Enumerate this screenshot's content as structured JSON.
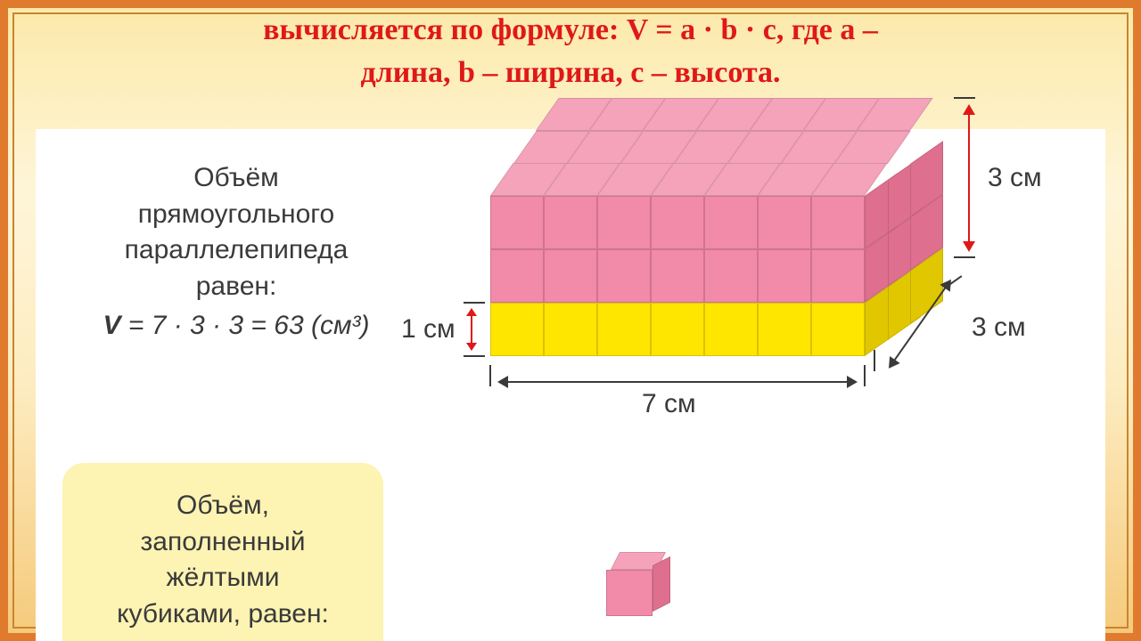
{
  "header": {
    "line1": "вычисляется по формуле: ",
    "formula": "V = a · b · c, где a –",
    "line2": "длина, b – ширина, c – высота."
  },
  "leftText": {
    "l1": "Объём",
    "l2": "прямоугольного",
    "l3": "параллелепипеда",
    "l4": "равен:",
    "formula": "V = 7 · 3 · 3 = 63 (см³)"
  },
  "noteBox": {
    "l1": "Объём,",
    "l2": "заполненный",
    "l3": "жёлтыми",
    "l4": "кубиками, равен:"
  },
  "cuboid": {
    "cols": 7,
    "depth": 3,
    "height_rows": 3,
    "yellow_row_index": 2,
    "colors": {
      "pink_front": "#f28aa9",
      "pink_top": "#f4a3bb",
      "pink_side": "#de6f8f",
      "yellow_front": "#ffe600",
      "yellow_side": "#e0c700"
    },
    "labels": {
      "length": "7 см",
      "depth": "3 см",
      "height": "3 см",
      "one": "1 см"
    }
  },
  "unitCube": {
    "front": "#f28aa9",
    "top": "#f4a3bb",
    "side": "#de6f8f"
  },
  "style": {
    "text_color": "#3a3a3a",
    "accent_red": "#e01818"
  }
}
